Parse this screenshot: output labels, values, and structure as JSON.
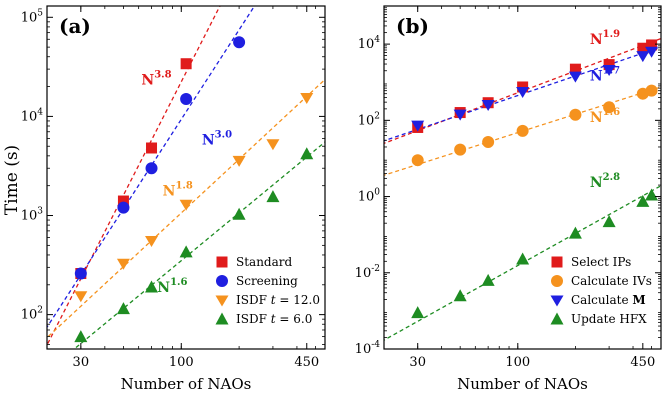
{
  "y_axis_label": "Time (s)",
  "colors": {
    "red": "#e01b1b",
    "blue": "#1f1fe0",
    "orange": "#f5921e",
    "green": "#1e8c22"
  },
  "chart_data": [
    {
      "type": "scatter",
      "panel_label": "(a)",
      "xlabel": "Number of NAOs",
      "ylabel": "Time (s)",
      "xscale": "log",
      "yscale": "log",
      "xlim": [
        20,
        560
      ],
      "ylim": [
        45,
        130000
      ],
      "x_ticks": [
        30,
        100,
        450
      ],
      "x_tick_labels": [
        "30",
        "100",
        "450"
      ],
      "y_ticks": [
        100,
        1000,
        10000,
        100000
      ],
      "y_tick_labels": [
        {
          "base": "10",
          "exp": "2"
        },
        {
          "base": "10",
          "exp": "3"
        },
        {
          "base": "10",
          "exp": "4"
        },
        {
          "base": "10",
          "exp": "5"
        }
      ],
      "legend_position": "lower-right",
      "series": [
        {
          "name": "Standard",
          "marker": "square",
          "color": "red",
          "x": [
            30,
            50,
            70,
            106
          ],
          "y": [
            260,
            1400,
            4800,
            34000
          ],
          "fit_exponent": 3.8,
          "fit_range": [
            18,
            175
          ]
        },
        {
          "name": "Screening",
          "marker": "circle",
          "color": "blue",
          "x": [
            30,
            50,
            70,
            106,
            200
          ],
          "y": [
            260,
            1200,
            3000,
            15000,
            56000
          ],
          "fit_exponent": 3.0,
          "fit_range": [
            18,
            280
          ]
        },
        {
          "name": "ISDF t = 12.0",
          "name_prefix": "ISDF ",
          "name_var": "t",
          "name_suffix": " = 12.0",
          "marker": "triangle-down",
          "color": "orange",
          "x": [
            30,
            50,
            70,
            106,
            200,
            300,
            450
          ],
          "y": [
            155,
            330,
            560,
            1300,
            3600,
            5300,
            15500
          ],
          "fit_exponent": 1.8,
          "fit_range": [
            18,
            580
          ]
        },
        {
          "name": "ISDF t = 6.0",
          "name_prefix": "ISDF ",
          "name_var": "t",
          "name_suffix": " = 6.0",
          "marker": "triangle-up",
          "color": "green",
          "x": [
            30,
            50,
            70,
            106,
            200,
            300,
            450
          ],
          "y": [
            60,
            115,
            190,
            430,
            1030,
            1550,
            4200
          ],
          "fit_exponent": 1.6,
          "fit_range": [
            18,
            580
          ]
        }
      ],
      "annotations": [
        {
          "base": "N",
          "exp": "3.8",
          "color": "red",
          "x": 62,
          "y": 21000
        },
        {
          "base": "N",
          "exp": "3.0",
          "color": "blue",
          "x": 128,
          "y": 5200
        },
        {
          "base": "N",
          "exp": "1.8",
          "color": "orange",
          "x": 80,
          "y": 1600
        },
        {
          "base": "N",
          "exp": "1.6",
          "color": "green",
          "x": 75,
          "y": 170
        }
      ]
    },
    {
      "type": "scatter",
      "panel_label": "(b)",
      "xlabel": "Number of NAOs",
      "ylabel": "",
      "xscale": "log",
      "yscale": "log",
      "xlim": [
        20,
        560
      ],
      "ylim": [
        0.0001,
        100000
      ],
      "x_ticks": [
        30,
        100,
        450
      ],
      "x_tick_labels": [
        "30",
        "100",
        "450"
      ],
      "y_ticks": [
        0.0001,
        0.01,
        1,
        100,
        10000
      ],
      "y_tick_labels": [
        {
          "base": "10",
          "exp": "-4"
        },
        {
          "base": "10",
          "exp": "-2"
        },
        {
          "base": "10",
          "exp": "0"
        },
        {
          "base": "10",
          "exp": "2"
        },
        {
          "base": "10",
          "exp": "4"
        }
      ],
      "legend_position": "lower-right",
      "series": [
        {
          "name": "Select IPs",
          "marker": "square",
          "color": "red",
          "x": [
            30,
            50,
            70,
            106,
            200,
            300,
            450,
            500
          ],
          "y": [
            65,
            160,
            290,
            750,
            2200,
            2900,
            7800,
            9500
          ],
          "fit_exponent": 1.9,
          "fit_range": [
            18,
            580
          ]
        },
        {
          "name": "Calculate IVs",
          "marker": "circle",
          "color": "orange",
          "x": [
            30,
            50,
            70,
            106,
            200,
            300,
            450,
            500
          ],
          "y": [
            9,
            17,
            27,
            53,
            140,
            220,
            500,
            600
          ],
          "fit_exponent": 1.6,
          "fit_range": [
            18,
            580
          ]
        },
        {
          "name": "Calculate M",
          "name_prefix": "Calculate ",
          "name_bold": "M",
          "marker": "triangle-down",
          "color": "blue",
          "x": [
            30,
            50,
            70,
            106,
            200,
            300,
            450,
            500
          ],
          "y": [
            75,
            145,
            260,
            570,
            1450,
            2150,
            5000,
            6500
          ],
          "fit_exponent": 1.7,
          "fit_range": [
            18,
            580
          ]
        },
        {
          "name": "Update HFX",
          "marker": "triangle-up",
          "color": "green",
          "x": [
            30,
            50,
            70,
            106,
            200,
            300,
            450,
            500
          ],
          "y": [
            0.0009,
            0.0025,
            0.0063,
            0.023,
            0.11,
            0.22,
            0.75,
            1.1
          ],
          "fit_exponent": 2.8,
          "fit_range": [
            18,
            580
          ]
        }
      ],
      "annotations": [
        {
          "base": "N",
          "exp": "1.9",
          "color": "red",
          "x": 238,
          "y": 10000
        },
        {
          "base": "N",
          "exp": "1.7",
          "color": "blue",
          "x": 238,
          "y": 1100
        },
        {
          "base": "N",
          "exp": "1.6",
          "color": "orange",
          "x": 238,
          "y": 90
        },
        {
          "base": "N",
          "exp": "2.8",
          "color": "green",
          "x": 238,
          "y": 1.8
        }
      ]
    }
  ]
}
